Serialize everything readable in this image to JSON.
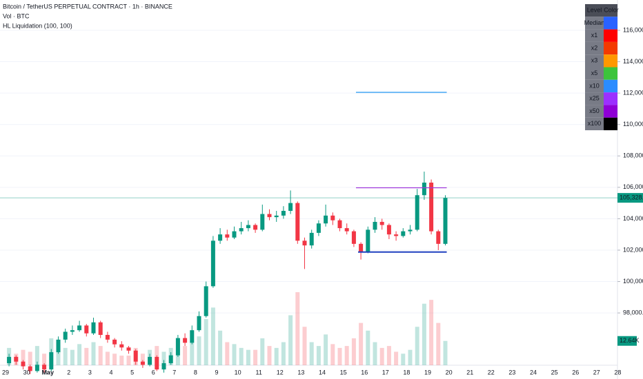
{
  "chart_data": {
    "type": "candlestick",
    "title": "Bitcoin / TetherUS PERPETUAL CONTRACT · 1h · BINANCE",
    "indicators": [
      "Vol · BTC",
      "HL Liquidation (100, 100)"
    ],
    "categories": [
      "29",
      "30",
      "May",
      "2",
      "3",
      "4",
      "5",
      "6",
      "7",
      "8",
      "9",
      "10",
      "11",
      "12",
      "13",
      "14",
      "15",
      "16",
      "17",
      "18",
      "19",
      "20",
      "21",
      "22",
      "23",
      "24",
      "25",
      "26",
      "27",
      "28"
    ],
    "candles_per_category": 3,
    "open": [
      94800,
      95200,
      94900,
      94600,
      94300,
      94700,
      94400,
      95500,
      96300,
      96800,
      96900,
      97200,
      96700,
      97400,
      96600,
      96300,
      96000,
      95800,
      95600,
      94900,
      94700,
      95200,
      94400,
      94800,
      95300,
      96400,
      96100,
      96900,
      97800,
      99700,
      102600,
      103000,
      102800,
      103200,
      103400,
      103600,
      103300,
      104300,
      104100,
      104200,
      104500,
      105000,
      102600,
      102300,
      103100,
      103700,
      104200,
      103900,
      103400,
      103200,
      102400,
      101900,
      103300,
      103800,
      103600,
      103000,
      102900,
      103200,
      103300,
      105500,
      106300,
      103200,
      102400
    ],
    "high": [
      95400,
      95300,
      95000,
      94700,
      94900,
      94800,
      95700,
      96500,
      97000,
      97200,
      97500,
      97300,
      97700,
      97500,
      96800,
      96400,
      96200,
      95900,
      95700,
      95000,
      95400,
      95300,
      95000,
      95500,
      96600,
      96700,
      97200,
      98100,
      100000,
      102900,
      103400,
      103300,
      103500,
      103800,
      103900,
      103700,
      104900,
      104600,
      104500,
      104800,
      105800,
      105100,
      102800,
      103300,
      103900,
      104900,
      104400,
      104000,
      103700,
      103300,
      102500,
      103500,
      104100,
      104000,
      103700,
      103200,
      103400,
      103600,
      105900,
      107000,
      106500,
      103300,
      105500
    ],
    "low": [
      94600,
      94700,
      94400,
      94100,
      94200,
      94200,
      94300,
      95400,
      96100,
      96600,
      96800,
      96500,
      96600,
      96400,
      96100,
      95800,
      95600,
      95400,
      94700,
      94500,
      94600,
      94300,
      94200,
      94700,
      95200,
      95900,
      96000,
      96800,
      97700,
      99600,
      102400,
      102600,
      102700,
      103000,
      103200,
      103100,
      103200,
      103900,
      103800,
      104000,
      104300,
      102400,
      100800,
      102100,
      102900,
      103500,
      103600,
      103200,
      103000,
      102200,
      101400,
      101800,
      103100,
      103300,
      102700,
      102600,
      102800,
      103000,
      103200,
      105200,
      103000,
      102000,
      102300
    ],
    "close": [
      95200,
      94900,
      94600,
      94300,
      94700,
      94400,
      95500,
      96300,
      96800,
      96900,
      97200,
      96700,
      97400,
      96600,
      96300,
      96000,
      95800,
      95600,
      94900,
      94700,
      95200,
      94400,
      94800,
      95300,
      96400,
      96100,
      96900,
      97800,
      99700,
      102600,
      103000,
      102800,
      103200,
      103400,
      103600,
      103300,
      104300,
      104100,
      104200,
      104500,
      105000,
      102600,
      102300,
      103100,
      103700,
      104200,
      103900,
      103400,
      103200,
      102400,
      101900,
      103300,
      103800,
      103600,
      103000,
      102900,
      103200,
      103300,
      105500,
      106300,
      103200,
      102400,
      105328.5
    ],
    "last_close_label": "105,328.5",
    "volume": [
      9,
      6,
      8,
      7,
      10,
      6,
      14,
      12,
      9,
      8,
      11,
      9,
      12,
      10,
      7,
      6,
      5,
      5,
      9,
      6,
      8,
      10,
      7,
      9,
      13,
      10,
      12,
      15,
      24,
      30,
      18,
      12,
      11,
      9,
      8,
      8,
      14,
      10,
      9,
      12,
      26,
      38,
      20,
      12,
      10,
      16,
      11,
      9,
      10,
      14,
      22,
      18,
      12,
      9,
      10,
      7,
      6,
      8,
      20,
      32,
      34,
      22,
      12.64
    ],
    "volume_ylim": [
      0,
      190
    ],
    "last_volume_label": "12.64K",
    "up_color": "#089981",
    "down_color": "#f23645",
    "ylim": [
      94670,
      117930
    ],
    "yticks": [
      {
        "value": 98000,
        "label": "98,000.0"
      },
      {
        "value": 100000,
        "label": "100,000.0"
      },
      {
        "value": 102000,
        "label": "102,000.0"
      },
      {
        "value": 104000,
        "label": "104,000.0"
      },
      {
        "value": 106000,
        "label": "106,000.0"
      },
      {
        "value": 108000,
        "label": "108,000.0"
      },
      {
        "value": 110000,
        "label": "110,000.0"
      },
      {
        "value": 112000,
        "label": "112,000.0"
      },
      {
        "value": 114000,
        "label": "114,000.0"
      },
      {
        "value": 116000,
        "label": "116,000.0"
      }
    ],
    "grid": true,
    "levels": [
      {
        "price": 112050,
        "color": "#2196f3",
        "x_start": 16.6,
        "x_end": 20.9
      },
      {
        "price": 105970,
        "color": "#a13adb",
        "x_start": 16.6,
        "x_end": 20.9
      },
      {
        "price": 101880,
        "color": "#1e3fbf",
        "x_start": 16.7,
        "x_end": 20.9
      }
    ],
    "level_table": {
      "header": [
        "Level",
        "Color"
      ],
      "rows": [
        {
          "level": "Median",
          "color": "#2962ff"
        },
        {
          "level": "x1",
          "color": "#ff0000"
        },
        {
          "level": "x2",
          "color": "#f33a00"
        },
        {
          "level": "x3",
          "color": "#ff9800"
        },
        {
          "level": "x5",
          "color": "#3cc43c"
        },
        {
          "level": "x10",
          "color": "#2b8cff"
        },
        {
          "level": "x25",
          "color": "#9b30ff"
        },
        {
          "level": "x50",
          "color": "#8f00d6"
        },
        {
          "level": "x100",
          "color": "#000000"
        }
      ]
    }
  }
}
